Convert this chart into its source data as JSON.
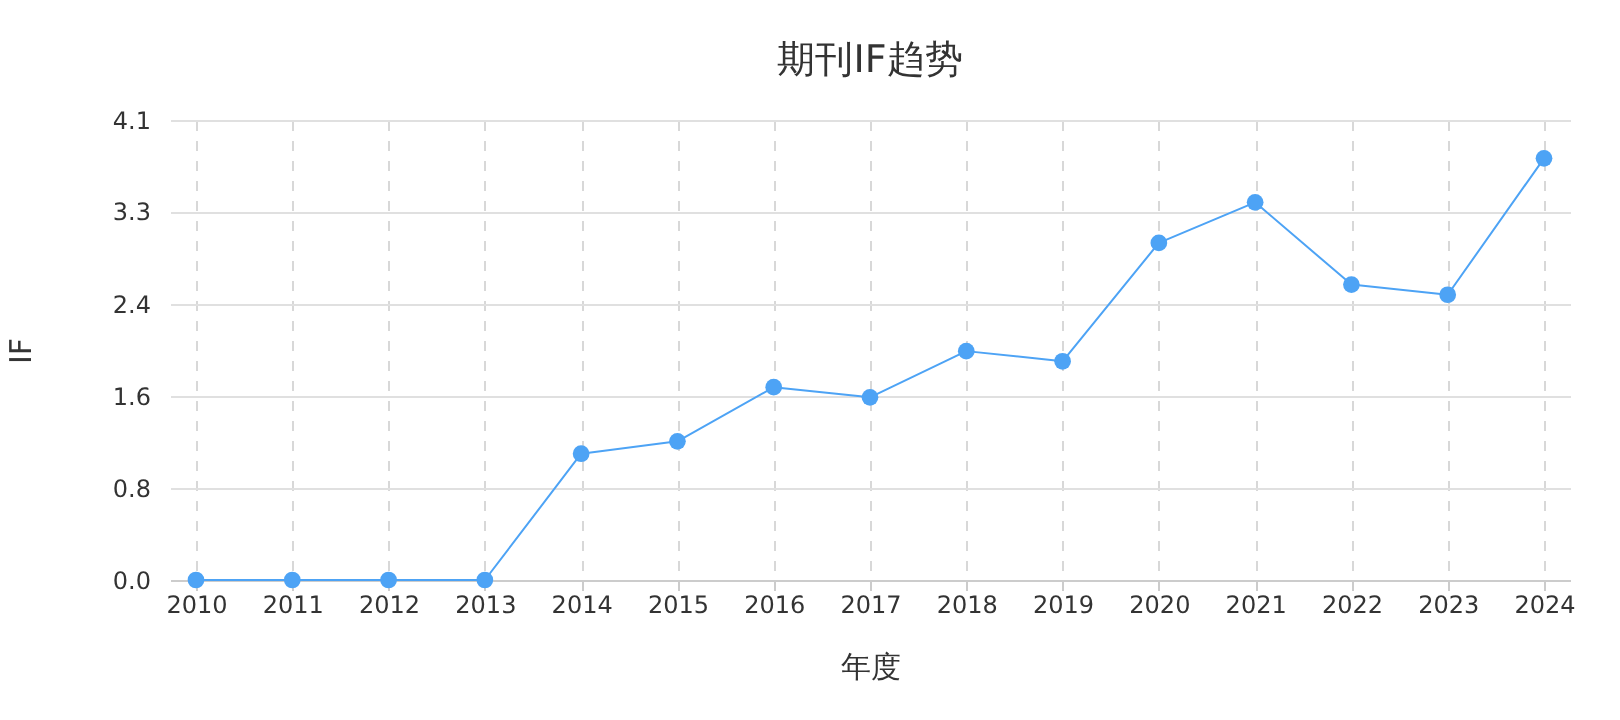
{
  "chart_data": {
    "type": "line",
    "title": "期刊IF趋势",
    "xlabel": "年度",
    "ylabel": "IF",
    "categories": [
      "2010",
      "2011",
      "2012",
      "2013",
      "2014",
      "2015",
      "2016",
      "2017",
      "2018",
      "2019",
      "2020",
      "2021",
      "2022",
      "2023",
      "2024"
    ],
    "series": [
      {
        "color": "#4da3f5",
        "values": [
          0,
          0,
          0,
          0,
          1.12,
          1.23,
          1.71,
          1.62,
          2.03,
          1.94,
          2.99,
          3.35,
          2.62,
          2.53,
          3.74
        ]
      }
    ],
    "ylim": [
      0,
      4.08
    ],
    "yticks": [
      {
        "value": 0,
        "label": "0.0"
      },
      {
        "value": 0.82,
        "label": "0.8"
      },
      {
        "value": 1.63,
        "label": "1.6"
      },
      {
        "value": 2.45,
        "label": "2.4"
      },
      {
        "value": 3.27,
        "label": "3.3"
      },
      {
        "value": 4.08,
        "label": "4.1"
      }
    ],
    "grid": true,
    "marker": "circle",
    "line_style": "solid"
  }
}
